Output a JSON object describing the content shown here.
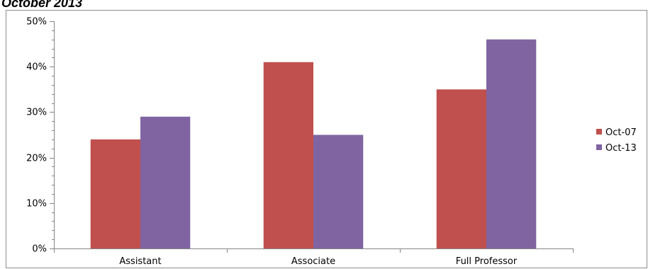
{
  "title": "October 2013",
  "chart_data": {
    "type": "bar",
    "categories": [
      "Assistant",
      "Associate",
      "Full Professor"
    ],
    "series": [
      {
        "name": "Oct-07",
        "values": [
          24,
          41,
          35
        ],
        "color": "#c0504d"
      },
      {
        "name": "Oct-13",
        "values": [
          29,
          25,
          46
        ],
        "color": "#8064a2"
      }
    ],
    "yticks": [
      "0%",
      "10%",
      "20%",
      "30%",
      "40%",
      "50%"
    ],
    "ylim": [
      0,
      50
    ],
    "grid": false,
    "legend_position": "right"
  }
}
